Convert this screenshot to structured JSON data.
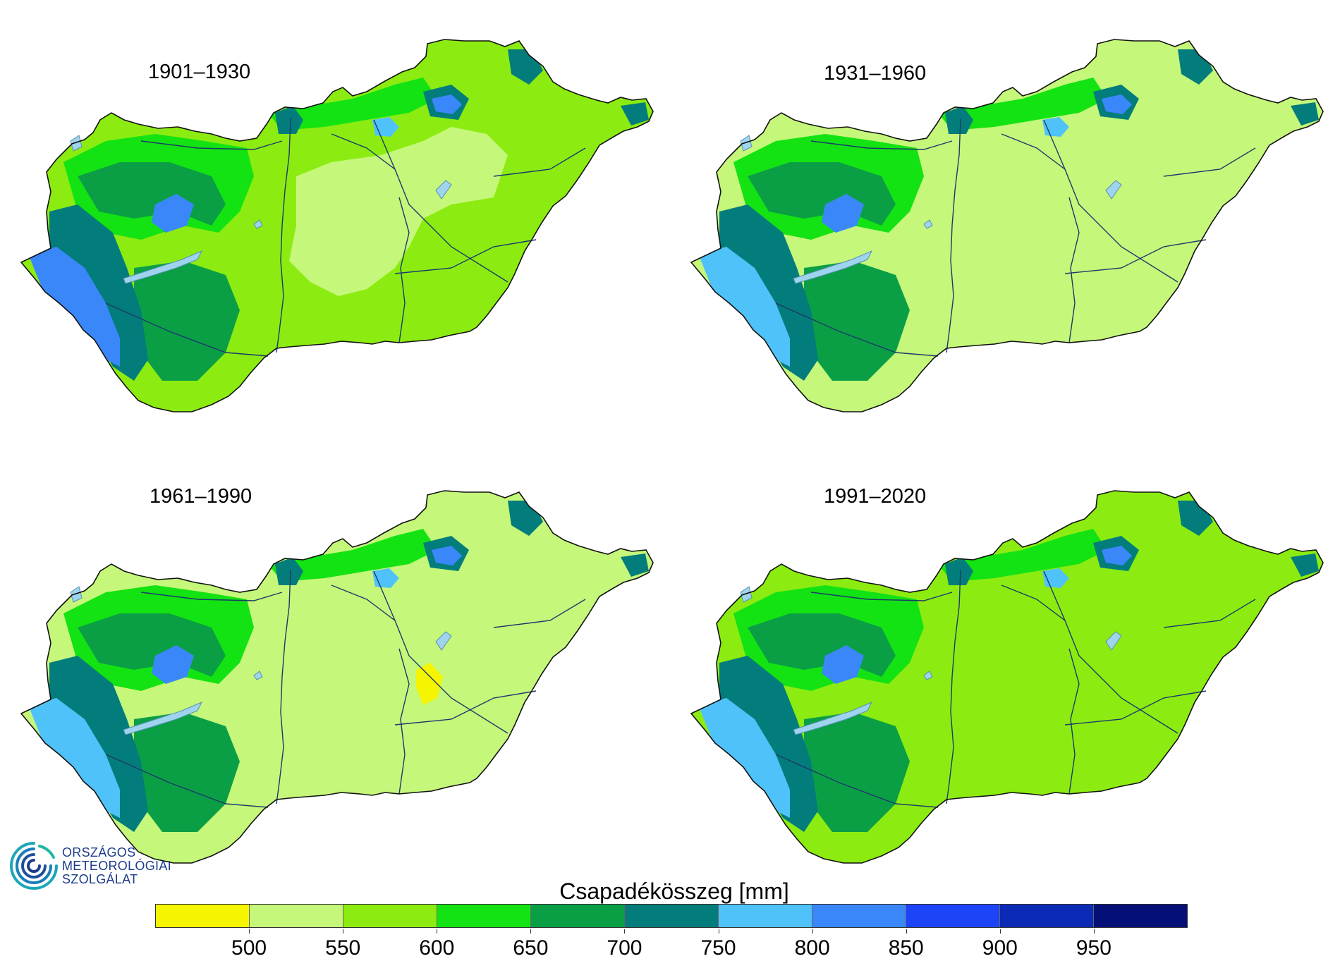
{
  "maps": [
    {
      "period": "1901–1930",
      "variant": 0
    },
    {
      "period": "1931–1960",
      "variant": 1
    },
    {
      "period": "1961–1990",
      "variant": 2
    },
    {
      "period": "1991–2020",
      "variant": 3
    }
  ],
  "legend": {
    "title": "Csapadékösszeg [mm]",
    "ticks": [
      "500",
      "550",
      "600",
      "650",
      "700",
      "750",
      "800",
      "850",
      "900",
      "950"
    ],
    "colors": [
      "#f5f500",
      "#c5f77a",
      "#8cec11",
      "#13e312",
      "#0a9f45",
      "#037d7b",
      "#4fc2f9",
      "#3a87fa",
      "#1d44f9",
      "#0b2ab6",
      "#040f78"
    ]
  },
  "logo": {
    "line1": "ORSZÁGOS",
    "line2": "METEOROLÓGIAI",
    "line3": "SZOLGÁLAT"
  },
  "colors": {
    "lake": "#9fd4ee",
    "river": "#1b3a6b",
    "outline": "#111111"
  }
}
